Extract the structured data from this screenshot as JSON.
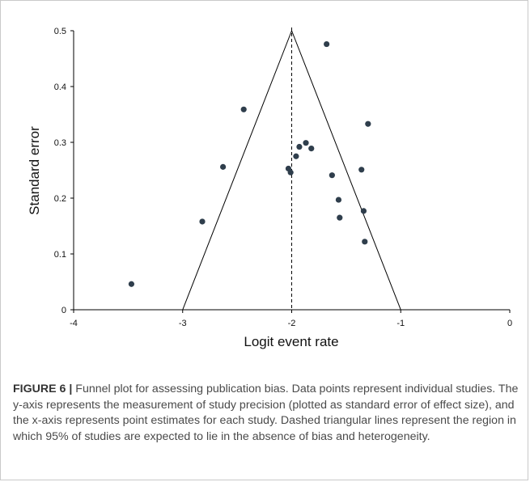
{
  "chart_data": {
    "type": "scatter",
    "xlabel": "Logit event rate",
    "ylabel": "Standard error",
    "xlim": [
      -4,
      0
    ],
    "ylim": [
      0,
      0.5
    ],
    "xticks": [
      -4,
      -3,
      -2,
      -1,
      0
    ],
    "yticks": [
      0,
      0.1,
      0.2,
      0.3,
      0.4,
      0.5
    ],
    "xtick_labels": [
      "-4",
      "-3",
      "-2",
      "-1",
      "0"
    ],
    "ytick_labels": [
      "0",
      "0.1",
      "0.2",
      "0.3",
      "0.4",
      "0.5"
    ],
    "grid": false,
    "center_line_x": -2,
    "funnel": {
      "apex": [
        -2,
        0.5
      ],
      "base_left": [
        -3,
        0
      ],
      "base_right": [
        -1,
        0
      ]
    },
    "point_color": "#2f3e4c",
    "points": [
      {
        "x": -3.47,
        "y": 0.046
      },
      {
        "x": -2.82,
        "y": 0.158
      },
      {
        "x": -2.63,
        "y": 0.256
      },
      {
        "x": -2.44,
        "y": 0.359
      },
      {
        "x": -2.03,
        "y": 0.253
      },
      {
        "x": -2.01,
        "y": 0.246
      },
      {
        "x": -1.96,
        "y": 0.275
      },
      {
        "x": -1.93,
        "y": 0.292
      },
      {
        "x": -1.87,
        "y": 0.299
      },
      {
        "x": -1.82,
        "y": 0.289
      },
      {
        "x": -1.68,
        "y": 0.476
      },
      {
        "x": -1.63,
        "y": 0.241
      },
      {
        "x": -1.57,
        "y": 0.197
      },
      {
        "x": -1.56,
        "y": 0.165
      },
      {
        "x": -1.36,
        "y": 0.251
      },
      {
        "x": -1.34,
        "y": 0.177
      },
      {
        "x": -1.33,
        "y": 0.122
      },
      {
        "x": -1.3,
        "y": 0.333
      }
    ]
  },
  "caption": {
    "label": "FIGURE 6 |",
    "text": "Funnel plot for assessing publication bias. Data points represent individual studies. The y-axis represents the measurement of study precision (plotted as standard error of effect size), and the x-axis represents point estimates for each study. Dashed triangular lines represent the region in which 95% of studies are expected to lie in the absence of bias and heterogeneity."
  }
}
